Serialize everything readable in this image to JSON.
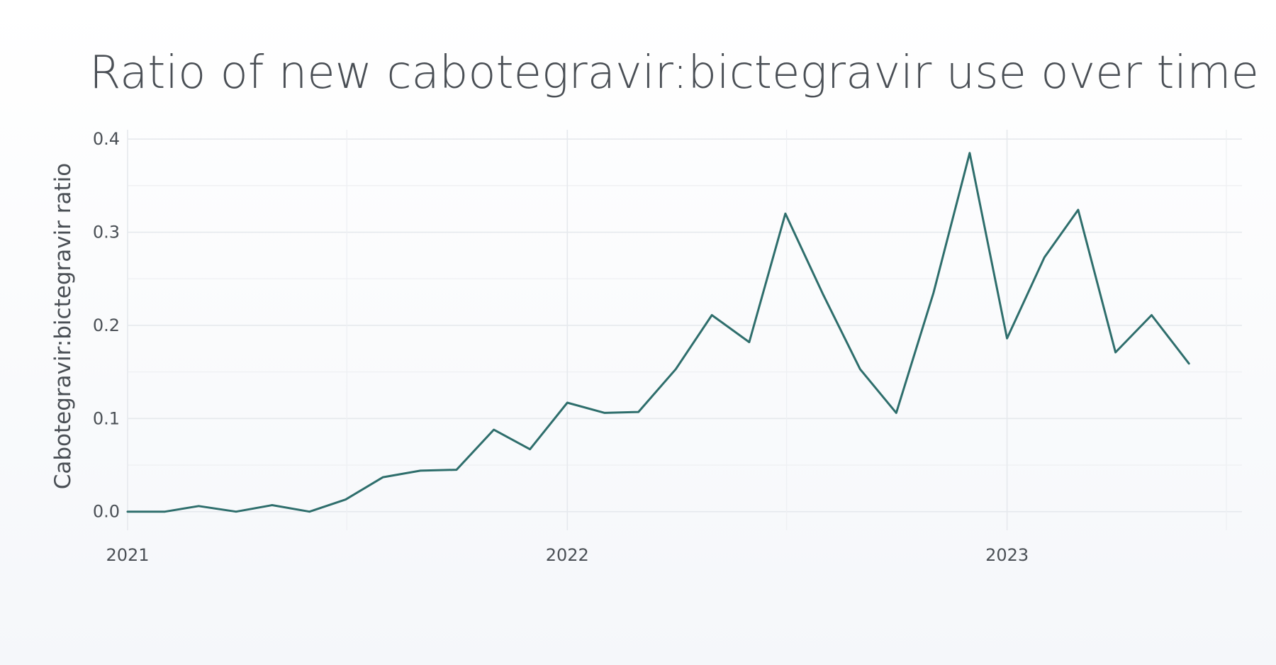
{
  "chart_data": {
    "type": "line",
    "title": "Ratio of new cabotegravir:bictegravir use over time",
    "xlabel": "",
    "ylabel": "Cabotegravir:bictegravir ratio",
    "x_ticks": [
      "2021",
      "2022",
      "2023"
    ],
    "y_ticks": [
      "0.0",
      "0.1",
      "0.2",
      "0.3",
      "0.4"
    ],
    "xlim": [
      "2021-01-01",
      "2023-07-15"
    ],
    "ylim": [
      -0.02,
      0.41
    ],
    "grid": true,
    "legend": "none",
    "colors": {
      "line": "#2e6e6c",
      "grid": "#e6e9ed"
    },
    "series": [
      {
        "x": [
          "2021-01-01",
          "2021-02-01",
          "2021-03-01",
          "2021-04-01",
          "2021-05-01",
          "2021-06-01",
          "2021-07-01",
          "2021-08-01",
          "2021-09-01",
          "2021-10-01",
          "2021-11-01",
          "2021-12-01",
          "2022-01-01",
          "2022-02-01",
          "2022-03-01",
          "2022-04-01",
          "2022-05-01",
          "2022-06-01",
          "2022-07-01",
          "2022-08-01",
          "2022-09-01",
          "2022-10-01",
          "2022-11-01",
          "2022-12-01",
          "2023-01-01",
          "2023-02-01",
          "2023-03-01",
          "2023-04-01",
          "2023-05-01",
          "2023-06-01"
        ],
        "values": [
          0.0,
          0.0,
          0.006,
          0.0,
          0.007,
          0.0,
          0.013,
          0.037,
          0.044,
          0.045,
          0.088,
          0.067,
          0.117,
          0.106,
          0.107,
          0.153,
          0.211,
          0.182,
          0.32,
          0.234,
          0.153,
          0.106,
          0.235,
          0.385,
          0.186,
          0.273,
          0.324,
          0.171,
          0.211,
          0.159
        ]
      }
    ]
  }
}
